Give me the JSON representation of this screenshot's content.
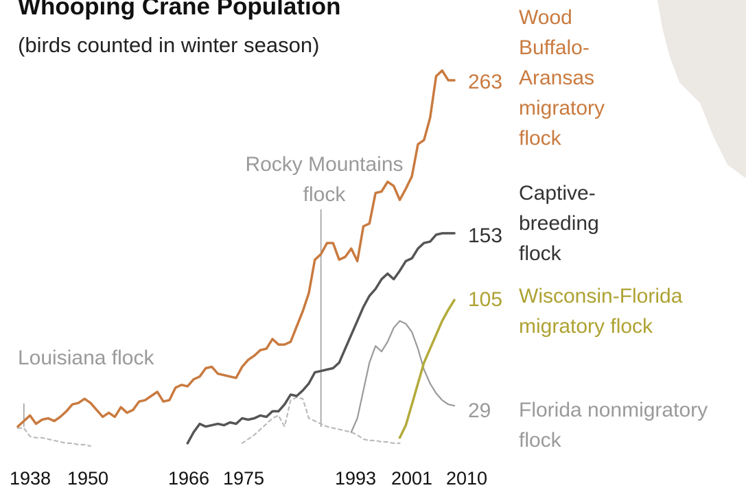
{
  "chart_data": {
    "type": "line",
    "title": "Whooping Crane Population",
    "subtitle": "(birds counted in winter season)",
    "xlim": [
      1938,
      2010
    ],
    "ylim": [
      0,
      263
    ],
    "x_ticks": [
      "1938",
      "1950",
      "1966",
      "1975",
      "1993",
      "2001",
      "2010"
    ],
    "series": [
      {
        "name": "Wood Buffalo-Aransas migratory flock",
        "label_lines": [
          "Wood",
          "Buffalo-",
          "Aransas",
          "migratory",
          "flock"
        ],
        "color": "#c97a3f",
        "style": "solid",
        "end_value": "263",
        "x": [
          1938,
          1939,
          1940,
          1941,
          1942,
          1943,
          1944,
          1945,
          1946,
          1947,
          1948,
          1949,
          1950,
          1951,
          1952,
          1953,
          1954,
          1955,
          1956,
          1957,
          1958,
          1959,
          1960,
          1961,
          1962,
          1963,
          1964,
          1965,
          1966,
          1967,
          1968,
          1969,
          1970,
          1971,
          1972,
          1973,
          1974,
          1975,
          1976,
          1977,
          1978,
          1979,
          1980,
          1981,
          1982,
          1983,
          1984,
          1985,
          1986,
          1987,
          1988,
          1989,
          1990,
          1991,
          1992,
          1993,
          1994,
          1995,
          1996,
          1997,
          1998,
          1999,
          2000,
          2001,
          2002,
          2003,
          2004,
          2005,
          2006,
          2007,
          2008,
          2009,
          2010
        ],
        "y": [
          14,
          18,
          22,
          16,
          19,
          20,
          18,
          21,
          25,
          30,
          31,
          34,
          31,
          26,
          21,
          24,
          21,
          28,
          24,
          26,
          32,
          33,
          36,
          39,
          32,
          33,
          42,
          44,
          43,
          48,
          50,
          56,
          57,
          52,
          51,
          50,
          49,
          57,
          62,
          65,
          69,
          70,
          77,
          73,
          73,
          75,
          86,
          97,
          110,
          134,
          138,
          146,
          146,
          134,
          136,
          142,
          133,
          158,
          160,
          182,
          183,
          190,
          187,
          177,
          185,
          194,
          217,
          220,
          236,
          266,
          270,
          263,
          263
        ]
      },
      {
        "name": "Captive-breeding flock",
        "label_lines": [
          "Captive-",
          "breeding",
          "flock"
        ],
        "color": "#555555",
        "style": "solid",
        "end_value": "153",
        "x": [
          1966,
          1967,
          1968,
          1969,
          1970,
          1971,
          1972,
          1973,
          1974,
          1975,
          1976,
          1977,
          1978,
          1979,
          1980,
          1981,
          1982,
          1983,
          1984,
          1985,
          1986,
          1987,
          1988,
          1989,
          1990,
          1991,
          1992,
          1993,
          1994,
          1995,
          1996,
          1997,
          1998,
          1999,
          2000,
          2001,
          2002,
          2003,
          2004,
          2005,
          2006,
          2007,
          2008,
          2009,
          2010
        ],
        "y": [
          2,
          10,
          16,
          14,
          15,
          16,
          15,
          17,
          16,
          20,
          19,
          20,
          22,
          21,
          25,
          25,
          30,
          37,
          36,
          40,
          45,
          53,
          54,
          55,
          56,
          60,
          70,
          80,
          90,
          100,
          108,
          113,
          120,
          124,
          120,
          126,
          133,
          135,
          142,
          146,
          147,
          152,
          153,
          153,
          153
        ]
      },
      {
        "name": "Wisconsin-Florida migratory flock",
        "label_lines": [
          "Wisconsin-Florida",
          "migratory flock"
        ],
        "color": "#b3aa3a",
        "style": "solid",
        "end_value": "105",
        "x": [
          2001,
          2002,
          2003,
          2004,
          2005,
          2006,
          2007,
          2008,
          2009,
          2010
        ],
        "y": [
          6,
          15,
          30,
          45,
          60,
          70,
          80,
          90,
          98,
          105
        ]
      },
      {
        "name": "Florida nonmigratory flock",
        "label_lines": [
          "Florida nonmigratory",
          "flock"
        ],
        "color": "#9a9a9a",
        "style": "solid",
        "end_value": "29",
        "x": [
          1993,
          1994,
          1995,
          1996,
          1997,
          1998,
          1999,
          2000,
          2001,
          2002,
          2003,
          2004,
          2005,
          2006,
          2007,
          2008,
          2009,
          2010
        ],
        "y": [
          10,
          20,
          40,
          60,
          72,
          68,
          75,
          85,
          90,
          88,
          82,
          70,
          55,
          45,
          38,
          33,
          30,
          29
        ]
      },
      {
        "name": "Louisiana flock",
        "label_lines": [
          "Louisiana flock"
        ],
        "color": "#bbbbbb",
        "style": "dashed",
        "x": [
          1938,
          1939,
          1940,
          1941,
          1942,
          1943,
          1944,
          1945,
          1946,
          1947,
          1948,
          1949,
          1950
        ],
        "y": [
          13,
          13,
          7,
          6,
          6,
          5,
          4,
          3,
          2,
          2,
          1,
          1,
          0
        ]
      },
      {
        "name": "Rocky Mountains flock",
        "label_lines": [
          "Rocky Mountains",
          "flock"
        ],
        "color": "#bbbbbb",
        "style": "dashed",
        "x": [
          1975,
          1976,
          1977,
          1978,
          1979,
          1980,
          1981,
          1982,
          1983,
          1984,
          1985,
          1986,
          1987,
          1988,
          1989,
          1990,
          1991,
          1992,
          1993,
          1994,
          1995,
          1996,
          1997,
          1998,
          1999,
          2000,
          2001
        ],
        "y": [
          2,
          5,
          8,
          12,
          16,
          20,
          22,
          14,
          33,
          35,
          34,
          20,
          18,
          16,
          14,
          13,
          12,
          11,
          10,
          8,
          5,
          4,
          4,
          3,
          3,
          2,
          2
        ]
      }
    ],
    "marker_lines": [
      {
        "x": 1939,
        "label": "Louisiana flock"
      },
      {
        "x": 1988,
        "label": "Rocky Mountains flock"
      }
    ]
  }
}
